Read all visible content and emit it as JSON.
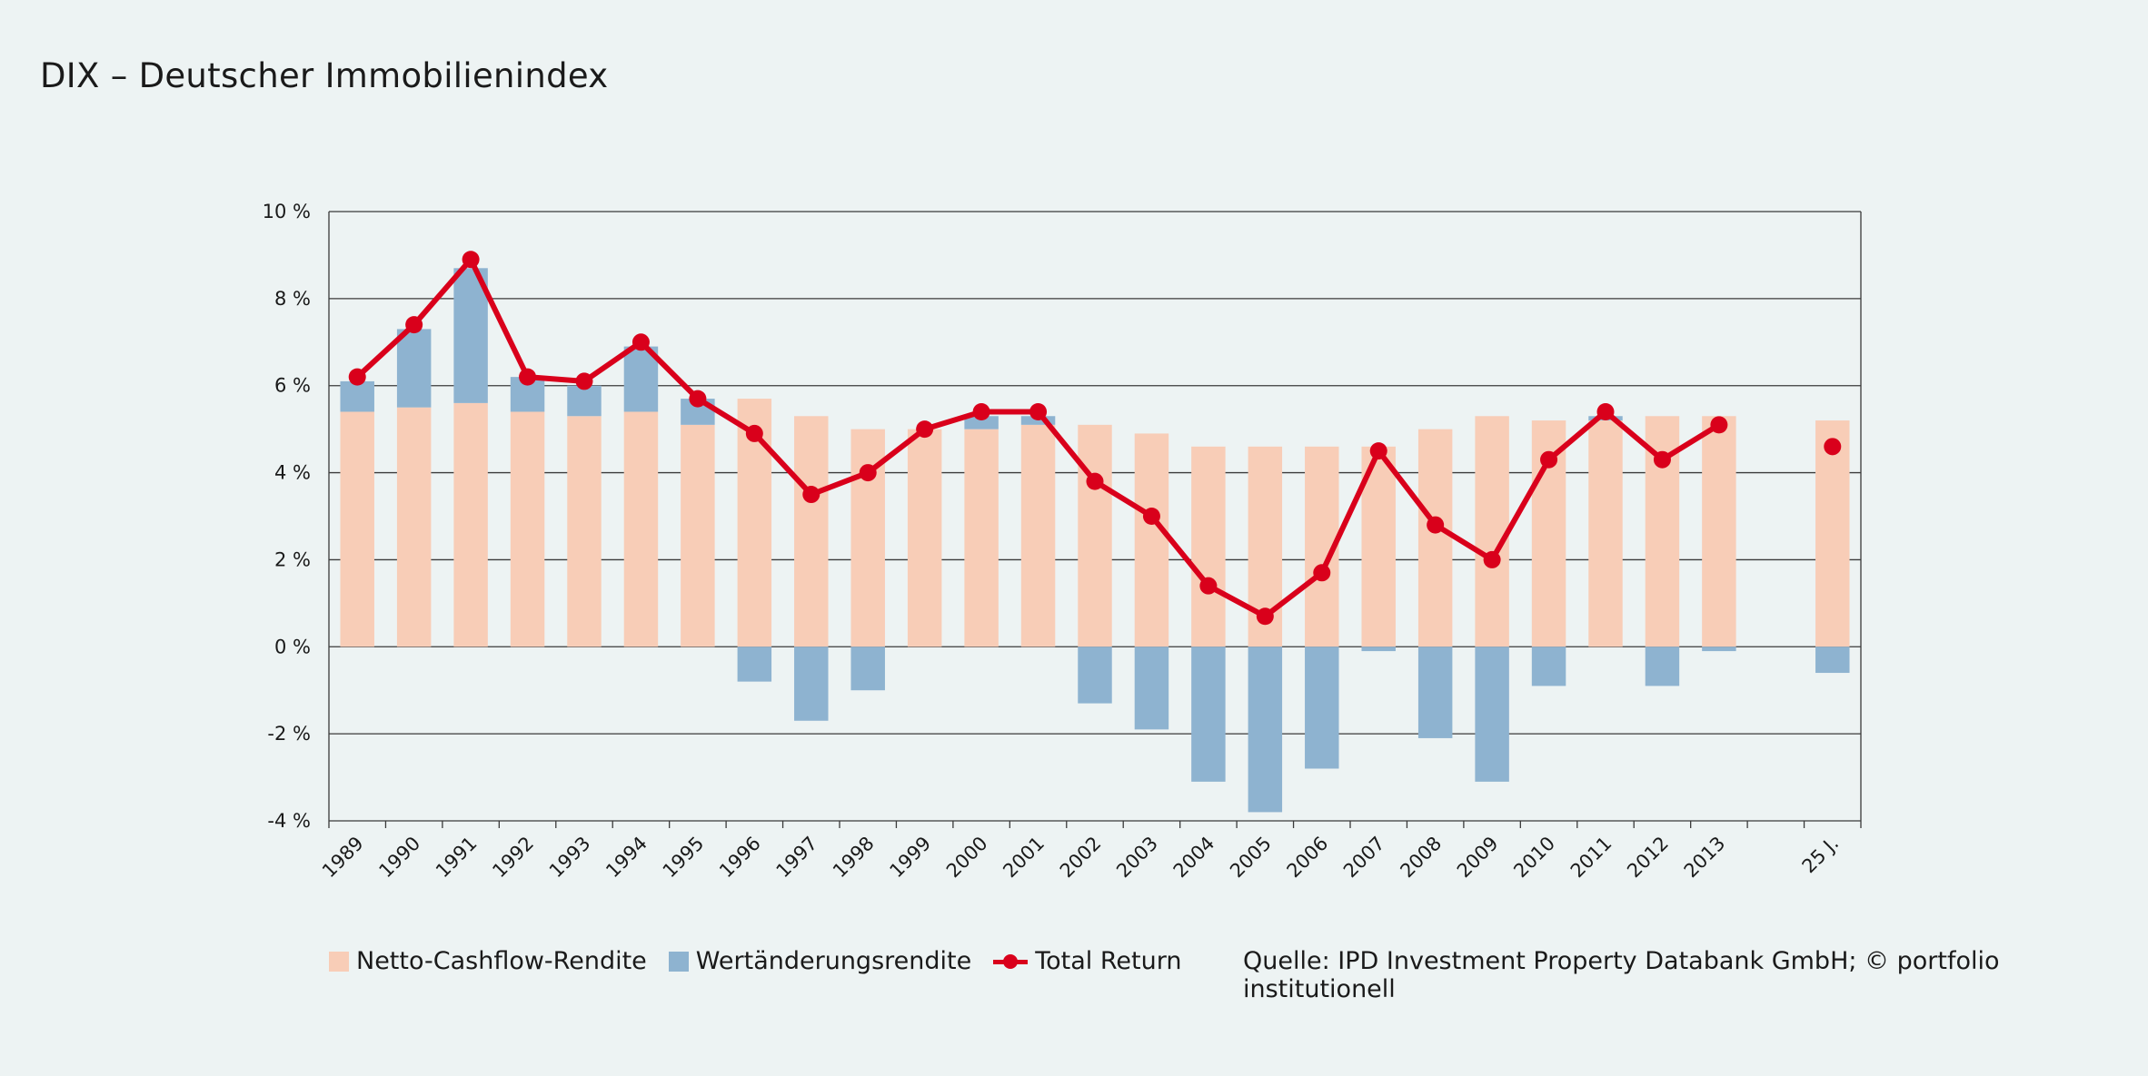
{
  "title": "DIX – Deutscher Immobilienindex",
  "source": "Quelle: IPD Investment Property Databank GmbH; © portfolio institutionell",
  "colors": {
    "netto": "#f8cdb7",
    "wert": "#8eb3d0",
    "total": "#d9001b",
    "background": "#edf3f3"
  },
  "chart_data": {
    "type": "bar",
    "title": "DIX – Deutscher Immobilienindex",
    "xlabel": "",
    "ylabel": "",
    "ylim": [
      -4,
      10
    ],
    "y_ticks": [
      10,
      8,
      6,
      4,
      2,
      0,
      -2,
      -4
    ],
    "y_tick_labels": [
      "10 %",
      "8 %",
      "6 %",
      "4 %",
      "2 %",
      "0 %",
      "-2 %",
      "-4 %"
    ],
    "grid": true,
    "legend_position": "bottom-left",
    "categories": [
      "1989",
      "1990",
      "1991",
      "1992",
      "1993",
      "1994",
      "1995",
      "1996",
      "1997",
      "1998",
      "1999",
      "2000",
      "2001",
      "2002",
      "2003",
      "2004",
      "2005",
      "2006",
      "2007",
      "2008",
      "2009",
      "2010",
      "2011",
      "2012",
      "2013",
      "25 J."
    ],
    "series": [
      {
        "name": "Netto-Cashflow-Rendite",
        "type": "bar",
        "values": [
          5.4,
          5.5,
          5.6,
          5.4,
          5.3,
          5.4,
          5.1,
          5.7,
          5.3,
          5.0,
          5.0,
          5.0,
          5.1,
          5.1,
          4.9,
          4.6,
          4.6,
          4.6,
          4.6,
          5.0,
          5.3,
          5.2,
          5.2,
          5.3,
          5.3,
          5.2
        ]
      },
      {
        "name": "Wertänderungsrendite",
        "type": "bar",
        "values": [
          0.7,
          1.8,
          3.1,
          0.8,
          0.7,
          1.5,
          0.6,
          -0.8,
          -1.7,
          -1.0,
          0.0,
          0.3,
          0.2,
          -1.3,
          -1.9,
          -3.1,
          -3.8,
          -2.8,
          -0.1,
          -2.1,
          -3.1,
          -0.9,
          0.1,
          -0.9,
          -0.1,
          -0.6
        ]
      },
      {
        "name": "Total Return",
        "type": "line",
        "values": [
          6.2,
          7.4,
          8.9,
          6.2,
          6.1,
          7.0,
          5.7,
          4.9,
          3.5,
          4.0,
          5.0,
          5.4,
          5.4,
          3.8,
          3.0,
          1.4,
          0.7,
          1.7,
          4.5,
          2.8,
          2.0,
          4.3,
          5.4,
          4.3,
          5.1,
          4.6
        ],
        "connected_until_index": 24
      }
    ]
  }
}
